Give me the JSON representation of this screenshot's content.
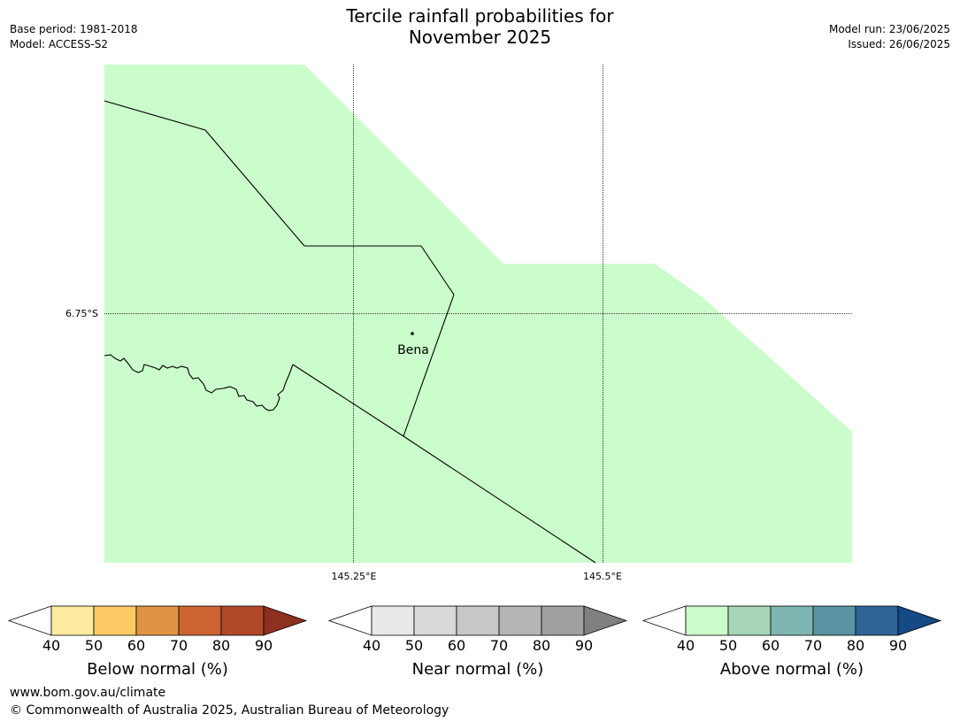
{
  "title_line1": "Tercile rainfall probabilities for",
  "title_line2": "November 2025",
  "base_period": "Base period: 1981-2018",
  "model": "Model: ACCESS-S2",
  "model_run": "Model run: 23/06/2025",
  "issued": "Issued: 26/06/2025",
  "map": {
    "fill_color": "#cbfccb",
    "lat_label": "6.75°S",
    "lon_labels": [
      "145.25°E",
      "145.5°E"
    ],
    "place": "Bena"
  },
  "colorbars": [
    {
      "title": "Below normal (%)",
      "ticks": [
        "40",
        "50",
        "60",
        "70",
        "80",
        "90"
      ],
      "colors": [
        "#ffeca0",
        "#fdc964",
        "#e09244",
        "#cc6434",
        "#b0492a",
        "#8e3020"
      ]
    },
    {
      "title": "Near normal (%)",
      "ticks": [
        "40",
        "50",
        "60",
        "70",
        "80",
        "90"
      ],
      "colors": [
        "#e8e8e8",
        "#d9d9d9",
        "#c8c8c8",
        "#b5b5b5",
        "#a0a0a0",
        "#808080"
      ]
    },
    {
      "title": "Above normal (%)",
      "ticks": [
        "40",
        "50",
        "60",
        "70",
        "80",
        "90"
      ],
      "colors": [
        "#cbfccb",
        "#a5d5b6",
        "#7fb5b0",
        "#5a93a1",
        "#2e6496",
        "#164a86"
      ]
    }
  ],
  "footer": {
    "url": "www.bom.gov.au/climate",
    "copyright": "© Commonwealth of Australia 2025, Australian Bureau of Meteorology"
  }
}
